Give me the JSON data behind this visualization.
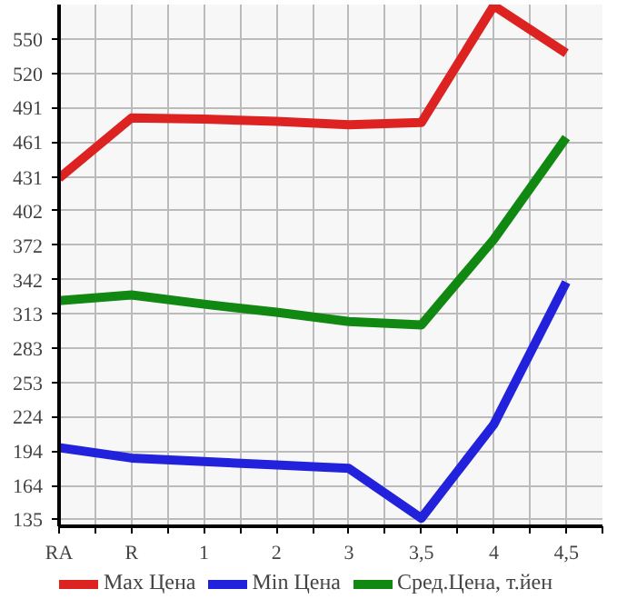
{
  "chart_data": {
    "type": "line",
    "categories": [
      "RA",
      "R",
      "1",
      "2",
      "3",
      "3,5",
      "4",
      "4,5"
    ],
    "series": [
      {
        "name": "Max Цена",
        "color": "#dd2222",
        "values": [
          430,
          482,
          481,
          479,
          476,
          478,
          579,
          538
        ]
      },
      {
        "name": "Min Цена",
        "color": "#2222dd",
        "values": [
          197,
          188,
          185,
          182,
          179,
          136,
          217,
          340
        ]
      },
      {
        "name": "Сред.Цена, т.йен",
        "color": "#118811",
        "values": [
          324,
          329,
          321,
          314,
          306,
          303,
          377,
          465
        ]
      }
    ],
    "ylim": [
      129,
      580
    ],
    "yticks": [
      135,
      164,
      194,
      224,
      253,
      283,
      313,
      342,
      372,
      402,
      431,
      461,
      491,
      520,
      550
    ],
    "grid": true,
    "legend": "bottom",
    "marker": "none",
    "line_style": "solid"
  }
}
